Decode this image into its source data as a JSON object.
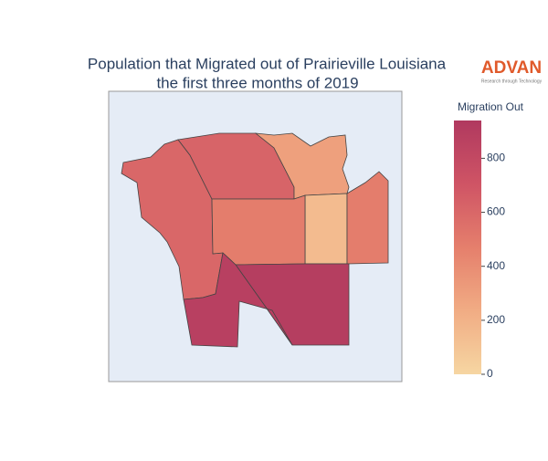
{
  "chart_data": {
    "type": "choropleth",
    "title": "Population that Migrated out of Prairieville Louisiana",
    "subtitle": "the first three months of 2019",
    "logo": "ADVAN",
    "logo_tagline": "Research through Technology",
    "colorbar_title": "Migration Out",
    "values": [
      600,
      620,
      300,
      150,
      480,
      480,
      900,
      880
    ],
    "clim": [
      0,
      940
    ],
    "cticks": [
      0,
      200,
      400,
      600,
      800
    ]
  }
}
